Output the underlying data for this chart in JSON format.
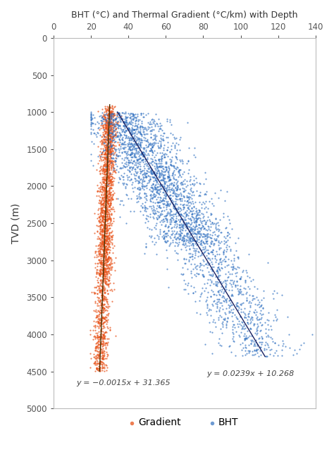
{
  "title": "BHT (°C) and Thermal Gradient (°C/km) with Depth",
  "ylabel": "TVD (m)",
  "xlim": [
    0,
    140
  ],
  "ylim": [
    5000,
    0
  ],
  "xticks": [
    0,
    20,
    40,
    60,
    80,
    100,
    120,
    140
  ],
  "yticks": [
    0,
    500,
    1000,
    1500,
    2000,
    2500,
    3000,
    3500,
    4000,
    4500,
    5000
  ],
  "gradient_color": "#E8531A",
  "bht_color": "#3070C0",
  "trendline_gradient_color": "#4A3000",
  "trendline_bht_color": "#1A2060",
  "gradient_eq": "y = −0.0015x + 31.365",
  "bht_eq": "y = 0.0239x + 10.268",
  "gradient_eq_x": 12,
  "gradient_eq_y": 4680,
  "bht_eq_x": 82,
  "bht_eq_y": 4560,
  "legend_gradient_label": "Gradient",
  "legend_bht_label": "BHT",
  "seed": 42,
  "n_gradient": 1500,
  "n_bht": 2200,
  "bg_color": "#ffffff",
  "marker_size": 2.5,
  "gradient_depth_min": 900,
  "gradient_depth_max": 4500,
  "gradient_x_spread": 2.0,
  "bht_depth_min": 1000,
  "bht_depth_max": 4300,
  "bht_x_spread": 10
}
